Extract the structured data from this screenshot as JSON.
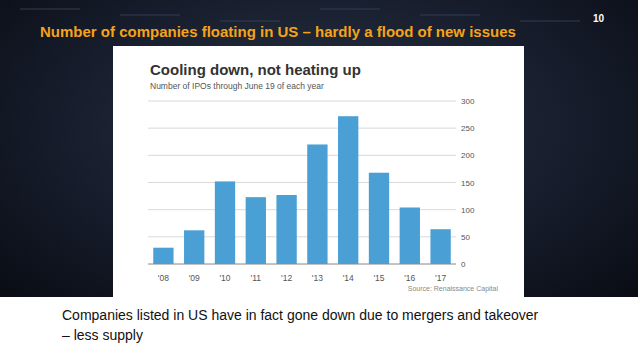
{
  "slide": {
    "title": "Number of companies floating in US – hardly a flood of new issues",
    "page_number": "10",
    "note": [
      "Companies listed in US have in fact gone down due to mergers and takeover",
      "– less supply"
    ]
  },
  "chart_data": {
    "type": "bar",
    "title": "Cooling down, not heating up",
    "subtitle": "Number of IPOs through June 19 of each year",
    "source": "Source: Renaissance Capital",
    "categories": [
      "'08",
      "'09",
      "'10",
      "'11",
      "'12",
      "'13",
      "'14",
      "'15",
      "'16",
      "'17"
    ],
    "values": [
      30,
      62,
      152,
      123,
      127,
      220,
      272,
      168,
      104,
      64
    ],
    "color": "#4a9fd4",
    "ylim": [
      0,
      300
    ],
    "yticks": [
      0,
      50,
      100,
      150,
      200,
      250,
      300
    ],
    "grid": true
  }
}
